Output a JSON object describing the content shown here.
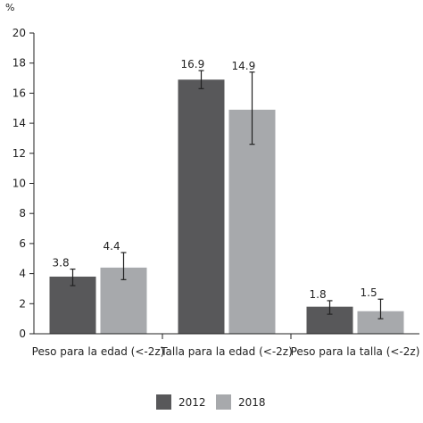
{
  "chart_data": {
    "type": "bar",
    "ylabel": "%",
    "ylim": [
      0,
      20
    ],
    "yticks": [
      0,
      2,
      4,
      6,
      8,
      10,
      12,
      14,
      16,
      18,
      20
    ],
    "categories": [
      "Peso para la edad (<-2z)",
      "Talla para la edad (<-2z)",
      "Peso para la talla (<-2z)"
    ],
    "series": [
      {
        "name": "2012",
        "color": "#58585a",
        "values": [
          3.8,
          16.9,
          1.8
        ],
        "labels": [
          "3.8",
          "16.9",
          "1.8"
        ],
        "error_low": [
          3.2,
          16.3,
          1.3
        ],
        "error_high": [
          4.3,
          17.5,
          2.2
        ]
      },
      {
        "name": "2018",
        "color": "#a7a9ac",
        "values": [
          4.4,
          14.9,
          1.5
        ],
        "labels": [
          "4.4",
          "14.9",
          "1.5"
        ],
        "error_low": [
          3.6,
          12.6,
          1.0
        ],
        "error_high": [
          5.4,
          17.4,
          2.3
        ]
      }
    ],
    "legend_position": "bottom-center",
    "grid": false
  }
}
